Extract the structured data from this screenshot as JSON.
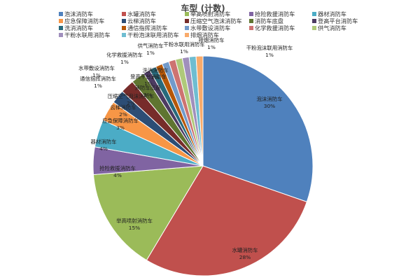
{
  "chart_data": {
    "type": "pie",
    "title": "车型 (计数)",
    "legend_position": "top",
    "categories": [
      "泡沫消防车",
      "水罐消防车",
      "举高喷射消防车",
      "抢险救援消防车",
      "器材消防车",
      "应急保障消防车",
      "云梯消防车",
      "压缩空气泡沫消防车",
      "消防车底盘",
      "登高平台消防车",
      "洗消消防车",
      "通信指挥消防车",
      "水带敷设消防车",
      "化学救援消防车",
      "供气消防车",
      "干粉水联用消防车",
      "干粉泡沫联用消防车",
      "排烟消防车"
    ],
    "legend_labels": [
      "泡沫消防车",
      "水罐消防车",
      "举高喷射消防车",
      "抢险救援消防车",
      "器材消防车",
      "应急保障消防车",
      "云梯消防车",
      "压缩空气泡沫消防车",
      "消防车底盘",
      "登高平台消防车",
      "洗消消防车",
      "通信指挥消防车",
      "水带敷设消防车",
      "化学救援消防车",
      "供气消防车",
      "干粉水联用消防车",
      "干粉泡沫联用消防车",
      "排烟消防车"
    ],
    "slice_labels": [
      "泡沫消防车",
      "水罐消防车",
      "举高喷射消防车",
      "抢险救援消防车",
      "器材消防车",
      "应急保障消防车",
      "云梯消防车",
      "压缩空气泡沫消防车",
      "消防车底盘",
      "登高平台消防车",
      "洗消消防车",
      "通信指挥消防车",
      "水带敷设消防车",
      "化学救援消防车",
      "供气消防车",
      "干粉水联用消防车",
      "排烟消防车",
      "干粉泡沫联用消防车"
    ],
    "slice_percents": [
      "30%",
      "28%",
      "15%",
      "4%",
      "4%",
      "3%",
      "2%",
      "2%",
      "2%",
      "1%",
      "1%",
      "1%",
      "1%",
      "1%",
      "1%",
      "1%",
      "1%",
      "1%"
    ],
    "values": [
      30,
      28,
      15,
      4,
      4,
      3,
      2,
      2,
      2,
      1,
      1,
      1,
      1,
      1,
      1,
      1,
      1,
      1
    ],
    "colors": [
      "#4f81bd",
      "#c0504d",
      "#9bbb59",
      "#8064a2",
      "#4bacc6",
      "#f79646",
      "#2c4d75",
      "#772c2a",
      "#5f7530",
      "#4d3b62",
      "#276a7c",
      "#b65708",
      "#729aca",
      "#cd7371",
      "#afc97a",
      "#a08fbc",
      "#6fbdd1",
      "#f9ab6b"
    ]
  }
}
